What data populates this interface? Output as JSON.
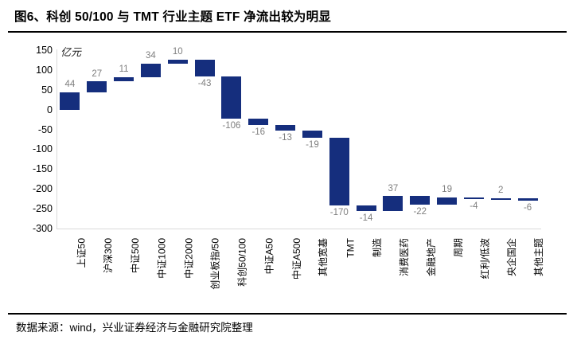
{
  "title": "图6、科创 50/100 与 TMT 行业主题 ETF 净流出较为明显",
  "footer": "数据来源：wind，兴业证券经济与金融研究院整理",
  "chart_data": {
    "type": "bar",
    "subtype": "waterfall",
    "title": "科创 50/100 与 TMT 行业主题 ETF 净流出较为明显",
    "unit_label": "亿元",
    "categories": [
      "上证50",
      "沪深300",
      "中证500",
      "中证1000",
      "中证2000",
      "创业板指/50",
      "科创50/100",
      "中证A50",
      "中证A500",
      "其他宽基",
      "TMT",
      "制造",
      "消费医药",
      "金融地产",
      "周期",
      "红利/低波",
      "央企国企",
      "其他主题"
    ],
    "values": [
      44,
      27,
      11,
      34,
      10,
      -43,
      -106,
      -16,
      -13,
      -19,
      -170,
      -14,
      37,
      -22,
      19,
      -4,
      2,
      -6
    ],
    "ylim": [
      -300,
      150
    ],
    "yticks": [
      150,
      100,
      50,
      0,
      -50,
      -100,
      -150,
      -200,
      -250,
      -300
    ],
    "xlabel": "",
    "ylabel": "亿元",
    "legend": "none",
    "grid": "off",
    "colors": {
      "bar": "#152e7d",
      "value_label": "#7f7f7f",
      "axis_line": "#d9d9d9",
      "tick_text": "#000000"
    }
  }
}
